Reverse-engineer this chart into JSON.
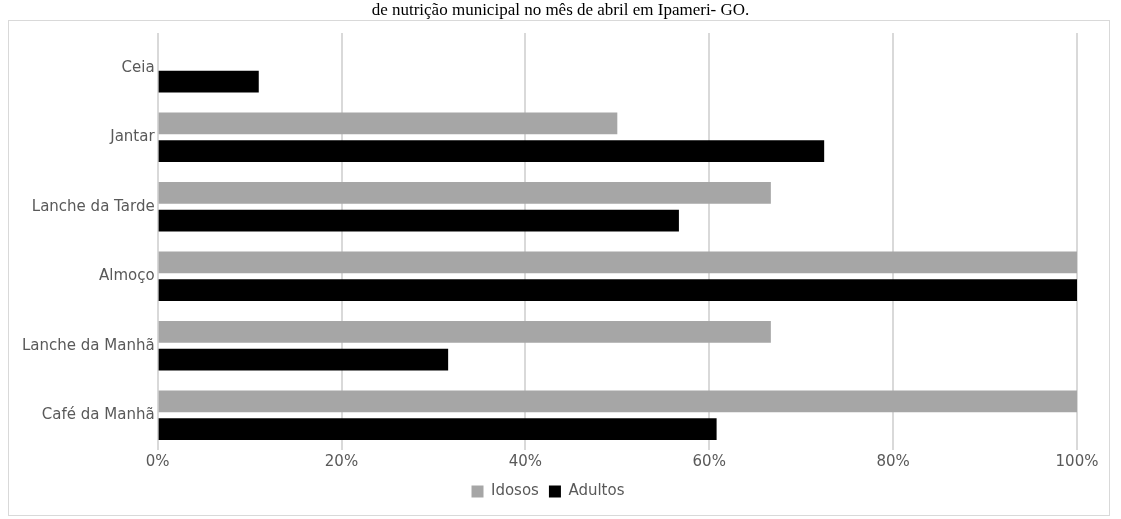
{
  "chart_data": {
    "type": "bar",
    "orientation": "horizontal",
    "title": "de nutrição municipal no mês de abril em Ipameri- GO.",
    "categories": [
      "Ceia",
      "Jantar",
      "Lanche da Tarde",
      "Almoço",
      "Lanche da Manhã",
      "Café da Manhã"
    ],
    "series": [
      {
        "name": "Idosos",
        "color": "#a6a6a6",
        "values": [
          null,
          50,
          66.7,
          100,
          66.7,
          100
        ]
      },
      {
        "name": "Adultos",
        "color": "#000000",
        "values": [
          11,
          72.5,
          56.7,
          100,
          31.6,
          60.8
        ]
      }
    ],
    "xlim": [
      0,
      100
    ],
    "xticks": [
      {
        "value": 0,
        "label": "0%"
      },
      {
        "value": 20,
        "label": "20%"
      },
      {
        "value": 40,
        "label": "40%"
      },
      {
        "value": 60,
        "label": "60%"
      },
      {
        "value": 80,
        "label": "80%"
      },
      {
        "value": 100,
        "label": "100%"
      }
    ],
    "grid": "x",
    "legend": "bottom"
  }
}
